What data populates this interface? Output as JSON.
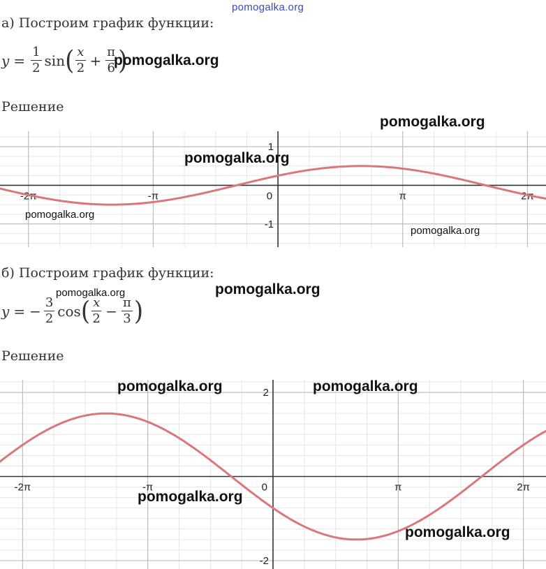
{
  "watermark_top": "pomogalka.org",
  "part_a": {
    "heading": "а) Построим график функции:",
    "formula": {
      "y": "y",
      "eq": "=",
      "coef_num": "1",
      "coef_den": "2",
      "func": "sin",
      "x_num": "x",
      "x_den": "2",
      "op": "+",
      "c_num": "π",
      "c_den": "6"
    },
    "solution": "Решение",
    "watermarks": [
      "pomogalka.org",
      "pomogalka.org",
      "pomogalka.org",
      "pomogalka.org",
      "pomogalka.org"
    ]
  },
  "part_b": {
    "heading": "б) Построим график функции:",
    "formula": {
      "y": "y",
      "eq": "=",
      "sign": "−",
      "coef_num": "3",
      "coef_den": "2",
      "func": "cos",
      "x_num": "x",
      "x_den": "2",
      "op": "−",
      "c_num": "π",
      "c_den": "3"
    },
    "solution": "Решение",
    "watermarks": [
      "pomogalka.org",
      "pomogalka.org",
      "pomogalka.org",
      "pomogalka.org",
      "pomogalka.org",
      "pomogalka.org"
    ]
  },
  "chart_data": [
    {
      "type": "line",
      "function": "y = 1/2·sin(x/2 + π/6)",
      "x_tick_labels": [
        "-2π",
        "-π",
        "0",
        "π",
        "2π"
      ],
      "y_tick_labels": [
        "1",
        "-1"
      ],
      "xlim": [
        -7.0,
        6.75
      ],
      "ylim": [
        -1.6,
        1.4
      ],
      "grid": true,
      "series": [
        {
          "amplitude": 0.5,
          "func": "sin",
          "freq": 0.5,
          "phase": 0.5235988,
          "color": "#d9777a"
        }
      ]
    },
    {
      "type": "line",
      "function": "y = −3/2·cos(x/2 − π/3)",
      "x_tick_labels": [
        "-2π",
        "-π",
        "0",
        "π",
        "2π"
      ],
      "y_tick_labels": [
        "2",
        "-2"
      ],
      "xlim": [
        -6.85,
        6.85
      ],
      "ylim": [
        -2.2,
        2.3
      ],
      "grid": true,
      "series": [
        {
          "amplitude": -1.5,
          "func": "cos",
          "freq": 0.5,
          "phase": -1.0471976,
          "color": "#d9777a"
        }
      ]
    }
  ]
}
